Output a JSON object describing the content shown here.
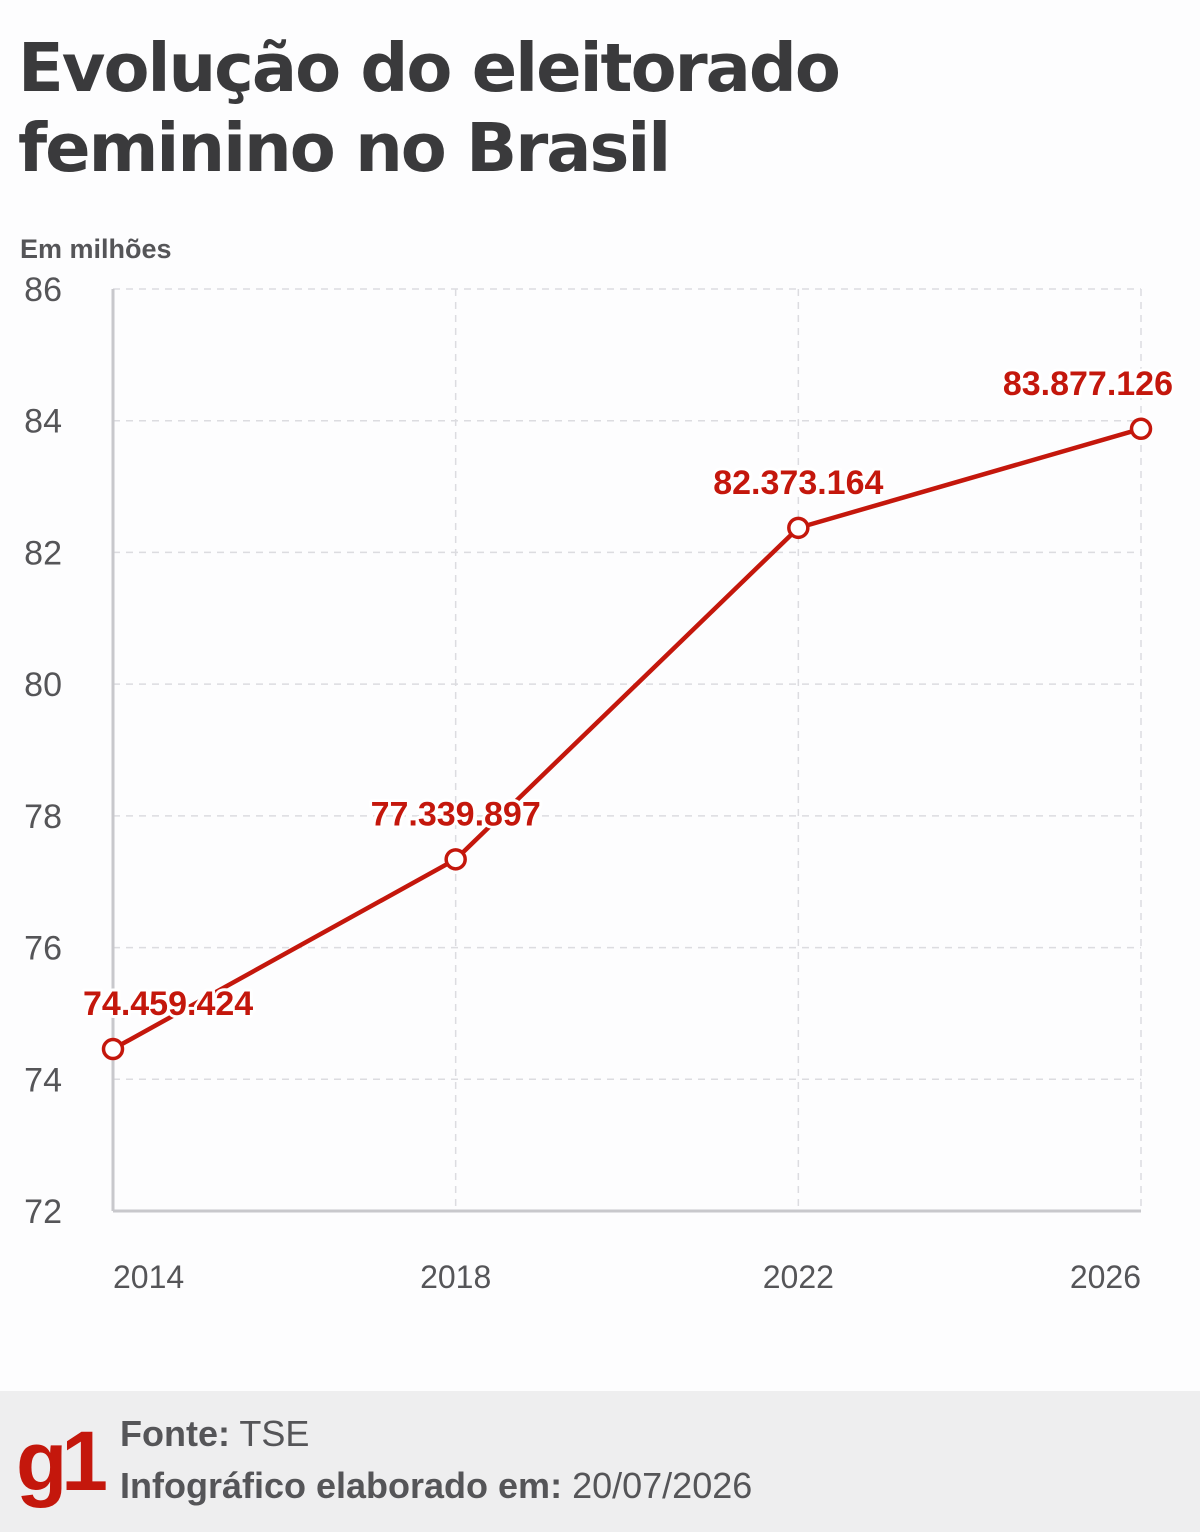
{
  "title": "Evolução do eleitorado feminino no Brasil",
  "unit_label": "Em milhões",
  "colors": {
    "series": "#c4170c",
    "axis_text": "#555558",
    "grid": "#dcdce0",
    "axis_line": "#c8c8cc"
  },
  "chart_data": {
    "type": "line",
    "title": "Evolução do eleitorado feminino no Brasil",
    "ylabel": "Em milhões",
    "xlabel": "",
    "x": [
      "2014",
      "2018",
      "2022",
      "2026"
    ],
    "ylim": [
      72,
      86
    ],
    "yticks": [
      72,
      74,
      76,
      78,
      80,
      82,
      84,
      86
    ],
    "grid": true,
    "series": [
      {
        "values": [
          74.459424,
          77.339897,
          82.373164,
          83.877126
        ],
        "labels": [
          "74.459.424",
          "77.339.897",
          "82.373.164",
          "83.877.126"
        ]
      }
    ]
  },
  "footer": {
    "logo": "g1",
    "source_label": "Fonte:",
    "source_value": "TSE",
    "date_label": "Infográfico elaborado em:",
    "date_value": "20/07/2026"
  }
}
